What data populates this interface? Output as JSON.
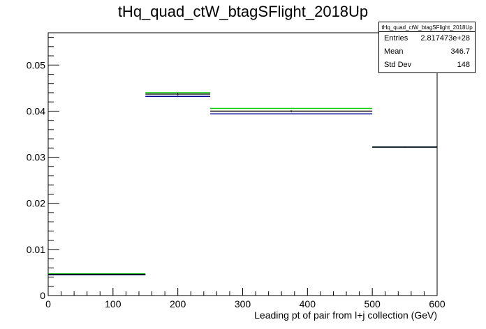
{
  "chart_data": {
    "type": "histogram",
    "title": "tHq_quad_ctW_btagSFlight_2018Up",
    "xlabel": "Leading pt of pair from l+j collection (GeV)",
    "ylabel": "",
    "xlim": [
      0,
      600
    ],
    "ylim": [
      0,
      0.057
    ],
    "x_ticks": [
      0,
      100,
      200,
      300,
      400,
      500,
      600
    ],
    "y_ticks": [
      0,
      0.01,
      0.02,
      0.03,
      0.04,
      0.05
    ],
    "x_tick_labels": [
      "0",
      "100",
      "200",
      "300",
      "400",
      "500",
      "600"
    ],
    "y_tick_labels": [
      "0",
      "0.01",
      "0.02",
      "0.03",
      "0.04",
      "0.05"
    ],
    "grid": false,
    "bin_edges": [
      0,
      150,
      250,
      500,
      600
    ],
    "series": [
      {
        "color": "#000000",
        "values": [
          0.0046,
          0.0437,
          0.04,
          0.0322
        ],
        "errors": [
          0.0001,
          0.0003,
          0.0002,
          0.0001
        ]
      },
      {
        "color": "#00cc00",
        "values": [
          0.0047,
          0.044,
          0.0406,
          0.0322
        ]
      },
      {
        "color": "#000099",
        "values": [
          0.0045,
          0.0432,
          0.0394,
          0.0322
        ]
      }
    ]
  },
  "stats": {
    "title": "tHq_quad_ctW_btagSFlight_2018Up",
    "rows": [
      {
        "label": "Entries",
        "value": "2.817473e+28"
      },
      {
        "label": "Mean",
        "value": "346.7"
      },
      {
        "label": "Std Dev",
        "value": "148"
      }
    ]
  }
}
